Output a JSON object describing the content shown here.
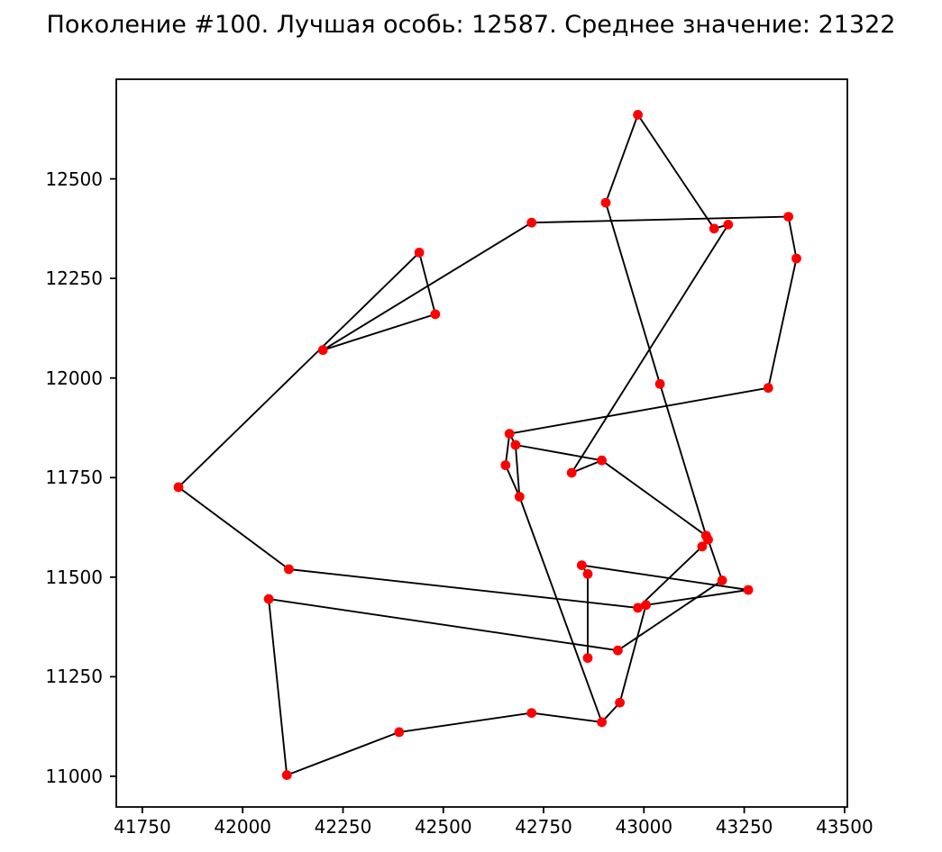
{
  "chart_data": {
    "type": "scatter",
    "title": "Поколение #100. Лучшая особь: 12587. Среднее значение: 21322",
    "generation": 100,
    "best_individual": 12587,
    "mean_value": 21322,
    "xlabel": "",
    "ylabel": "",
    "grid": false,
    "legend": null,
    "xlim": [
      41685,
      43507
    ],
    "ylim": [
      10923,
      12750
    ],
    "x_ticks": [
      41750,
      42000,
      42250,
      42500,
      42750,
      43000,
      43250,
      43500
    ],
    "y_ticks": [
      11000,
      11250,
      11500,
      11750,
      12000,
      12250,
      12500
    ],
    "point_color": "#ff0000",
    "line_color": "#000000",
    "points": [
      [
        41840,
        11726
      ],
      [
        42115,
        11520
      ],
      [
        42065,
        11445
      ],
      [
        42110,
        11003
      ],
      [
        42390,
        11111
      ],
      [
        42720,
        11159
      ],
      [
        42895,
        11136
      ],
      [
        42940,
        11185
      ],
      [
        42860,
        11297
      ],
      [
        42935,
        11316
      ],
      [
        42845,
        11530
      ],
      [
        42860,
        11508
      ],
      [
        42985,
        11423
      ],
      [
        43005,
        11430
      ],
      [
        43195,
        11492
      ],
      [
        43260,
        11468
      ],
      [
        43155,
        11604
      ],
      [
        43160,
        11594
      ],
      [
        43145,
        11577
      ],
      [
        42665,
        11860
      ],
      [
        42680,
        11832
      ],
      [
        42655,
        11781
      ],
      [
        42690,
        11702
      ],
      [
        42820,
        11762
      ],
      [
        42895,
        11793
      ],
      [
        43040,
        11985
      ],
      [
        43310,
        11975
      ],
      [
        42905,
        12440
      ],
      [
        42985,
        12661
      ],
      [
        43175,
        12375
      ],
      [
        43210,
        12385
      ],
      [
        43360,
        12405
      ],
      [
        43380,
        12300
      ],
      [
        42720,
        12390
      ],
      [
        42440,
        12315
      ],
      [
        42480,
        12160
      ],
      [
        42200,
        12070
      ]
    ],
    "segments": [
      [
        34,
        35
      ],
      [
        35,
        36
      ],
      [
        36,
        33
      ],
      [
        33,
        31
      ],
      [
        34,
        0
      ],
      [
        31,
        32
      ],
      [
        32,
        26
      ],
      [
        26,
        19
      ],
      [
        27,
        28
      ],
      [
        28,
        29
      ],
      [
        29,
        30
      ],
      [
        30,
        23
      ],
      [
        27,
        25
      ],
      [
        25,
        16
      ],
      [
        23,
        24
      ],
      [
        24,
        16
      ],
      [
        20,
        24
      ],
      [
        17,
        14
      ],
      [
        17,
        18
      ],
      [
        18,
        12
      ],
      [
        1,
        12
      ],
      [
        2,
        9
      ],
      [
        9,
        14
      ],
      [
        10,
        11
      ],
      [
        10,
        15
      ],
      [
        13,
        15
      ],
      [
        13,
        7
      ],
      [
        11,
        8
      ],
      [
        22,
        6
      ],
      [
        5,
        6
      ],
      [
        6,
        7
      ],
      [
        4,
        5
      ],
      [
        3,
        4
      ],
      [
        2,
        3
      ],
      [
        0,
        1
      ],
      [
        19,
        20
      ],
      [
        19,
        21
      ],
      [
        21,
        22
      ],
      [
        20,
        22
      ]
    ]
  }
}
